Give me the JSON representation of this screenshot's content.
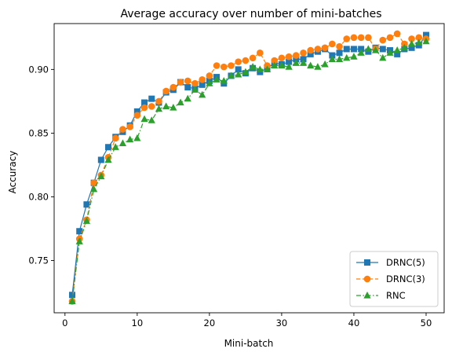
{
  "chart_data": {
    "type": "line",
    "title": "Average accuracy over number of mini-batches",
    "xlabel": "Mini-batch",
    "ylabel": "Accuracy",
    "xlim": [
      -1.5,
      52.5
    ],
    "ylim": [
      0.709,
      0.936
    ],
    "xticks": [
      0,
      10,
      20,
      30,
      40,
      50
    ],
    "xtick_labels": [
      "0",
      "10",
      "20",
      "30",
      "40",
      "50"
    ],
    "yticks": [
      0.75,
      0.8,
      0.85,
      0.9
    ],
    "ytick_labels": [
      "0.75",
      "0.80",
      "0.85",
      "0.90"
    ],
    "grid": false,
    "legend_position": "lower-right",
    "x": [
      1,
      2,
      3,
      4,
      5,
      6,
      7,
      8,
      9,
      10,
      11,
      12,
      13,
      14,
      15,
      16,
      17,
      18,
      19,
      20,
      21,
      22,
      23,
      24,
      25,
      26,
      27,
      28,
      29,
      30,
      31,
      32,
      33,
      34,
      35,
      36,
      37,
      38,
      39,
      40,
      41,
      42,
      43,
      44,
      45,
      46,
      47,
      48,
      49,
      50
    ],
    "series": [
      {
        "name": "DRNC(5)",
        "color": "#1f77b4",
        "marker": "square",
        "linestyle": "solid",
        "values": [
          0.723,
          0.773,
          0.794,
          0.811,
          0.829,
          0.839,
          0.847,
          0.851,
          0.856,
          0.867,
          0.874,
          0.877,
          0.874,
          0.882,
          0.884,
          0.89,
          0.886,
          0.885,
          0.888,
          0.891,
          0.894,
          0.889,
          0.895,
          0.9,
          0.897,
          0.901,
          0.898,
          0.901,
          0.905,
          0.904,
          0.906,
          0.908,
          0.908,
          0.912,
          0.914,
          0.916,
          0.911,
          0.913,
          0.916,
          0.916,
          0.916,
          0.914,
          0.917,
          0.916,
          0.915,
          0.912,
          0.916,
          0.917,
          0.919,
          0.927
        ]
      },
      {
        "name": "DRNC(3)",
        "color": "#ff7f0e",
        "marker": "circle",
        "linestyle": "dashed",
        "values": [
          0.718,
          0.767,
          0.782,
          0.811,
          0.817,
          0.831,
          0.846,
          0.853,
          0.855,
          0.864,
          0.87,
          0.871,
          0.875,
          0.883,
          0.886,
          0.89,
          0.891,
          0.889,
          0.892,
          0.895,
          0.903,
          0.902,
          0.903,
          0.906,
          0.907,
          0.909,
          0.913,
          0.903,
          0.907,
          0.909,
          0.91,
          0.911,
          0.913,
          0.915,
          0.916,
          0.917,
          0.92,
          0.918,
          0.924,
          0.925,
          0.925,
          0.925,
          0.916,
          0.923,
          0.925,
          0.928,
          0.92,
          0.924,
          0.925,
          0.924
        ]
      },
      {
        "name": "RNC",
        "color": "#2ca02c",
        "marker": "triangle",
        "linestyle": "dashdot",
        "values": [
          0.718,
          0.765,
          0.781,
          0.806,
          0.816,
          0.829,
          0.839,
          0.842,
          0.845,
          0.846,
          0.861,
          0.86,
          0.869,
          0.871,
          0.87,
          0.874,
          0.877,
          0.884,
          0.88,
          0.889,
          0.892,
          0.891,
          0.895,
          0.896,
          0.898,
          0.902,
          0.9,
          0.9,
          0.903,
          0.903,
          0.902,
          0.905,
          0.905,
          0.903,
          0.902,
          0.904,
          0.908,
          0.908,
          0.909,
          0.91,
          0.913,
          0.916,
          0.915,
          0.909,
          0.913,
          0.915,
          0.917,
          0.92,
          0.921,
          0.922
        ]
      }
    ]
  }
}
